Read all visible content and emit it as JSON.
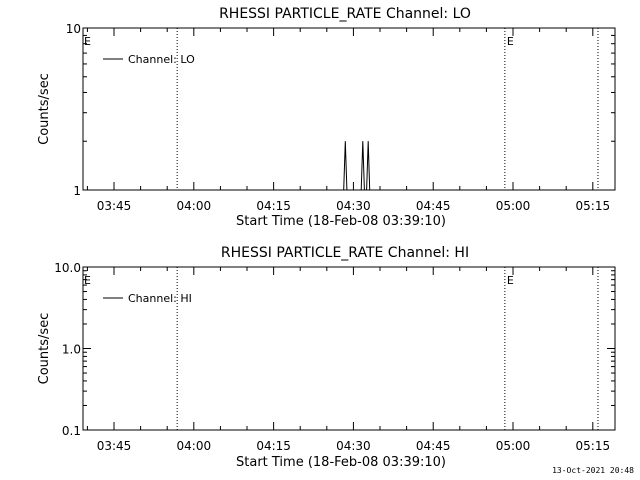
{
  "footer": {
    "timestamp": "13-Oct-2021 20:48"
  },
  "chart_data": [
    {
      "type": "line",
      "title": "RHESSI PARTICLE_RATE Channel: LO",
      "xlabel": "Start Time (18-Feb-08 03:39:10)",
      "ylabel": "Counts/sec",
      "yscale": "log",
      "ylim": [
        1,
        10
      ],
      "ytick_labels": [
        {
          "value": 1,
          "label": "1"
        },
        {
          "value": 10,
          "label": "10"
        }
      ],
      "xlim_minutes": [
        0,
        100
      ],
      "xtick_labels": [
        {
          "t": 5.83,
          "label": "03:45"
        },
        {
          "t": 20.83,
          "label": "04:00"
        },
        {
          "t": 35.83,
          "label": "04:15"
        },
        {
          "t": 50.83,
          "label": "04:30"
        },
        {
          "t": 65.83,
          "label": "04:45"
        },
        {
          "t": 80.83,
          "label": "05:00"
        },
        {
          "t": 95.83,
          "label": "05:15"
        }
      ],
      "legend": {
        "placement": "top-left",
        "entries": [
          "Channel: LO"
        ]
      },
      "event_lines": [
        {
          "t": 17.7,
          "label": ""
        },
        {
          "t": 79.3,
          "label": "E"
        },
        {
          "t": 96.8,
          "label": ""
        }
      ],
      "edge_markers": [
        "E"
      ],
      "series": [
        {
          "name": "Channel: LO",
          "points": [
            [
              49.0,
              1
            ],
            [
              49.3,
              2
            ],
            [
              49.6,
              1
            ],
            [
              50.5,
              1
            ],
            [
              50.6,
              1
            ],
            [
              52.3,
              1
            ],
            [
              52.6,
              2
            ],
            [
              52.9,
              1
            ],
            [
              53.3,
              1
            ],
            [
              53.6,
              2
            ],
            [
              53.9,
              1
            ]
          ]
        }
      ]
    },
    {
      "type": "line",
      "title": "RHESSI PARTICLE_RATE Channel: HI",
      "xlabel": "Start Time (18-Feb-08 03:39:10)",
      "ylabel": "Counts/sec",
      "yscale": "log",
      "ylim": [
        0.1,
        10
      ],
      "ytick_labels": [
        {
          "value": 0.1,
          "label": "0.1"
        },
        {
          "value": 1,
          "label": "1.0"
        },
        {
          "value": 10,
          "label": "10.0"
        }
      ],
      "xlim_minutes": [
        0,
        100
      ],
      "xtick_labels": [
        {
          "t": 5.83,
          "label": "03:45"
        },
        {
          "t": 20.83,
          "label": "04:00"
        },
        {
          "t": 35.83,
          "label": "04:15"
        },
        {
          "t": 50.83,
          "label": "04:30"
        },
        {
          "t": 65.83,
          "label": "04:45"
        },
        {
          "t": 80.83,
          "label": "05:00"
        },
        {
          "t": 95.83,
          "label": "05:15"
        }
      ],
      "legend": {
        "placement": "top-left",
        "entries": [
          "Channel: HI"
        ]
      },
      "event_lines": [
        {
          "t": 17.7,
          "label": ""
        },
        {
          "t": 79.3,
          "label": "E"
        },
        {
          "t": 96.8,
          "label": ""
        }
      ],
      "edge_markers": [
        "E"
      ],
      "series": [
        {
          "name": "Channel: HI",
          "points": []
        }
      ]
    }
  ]
}
